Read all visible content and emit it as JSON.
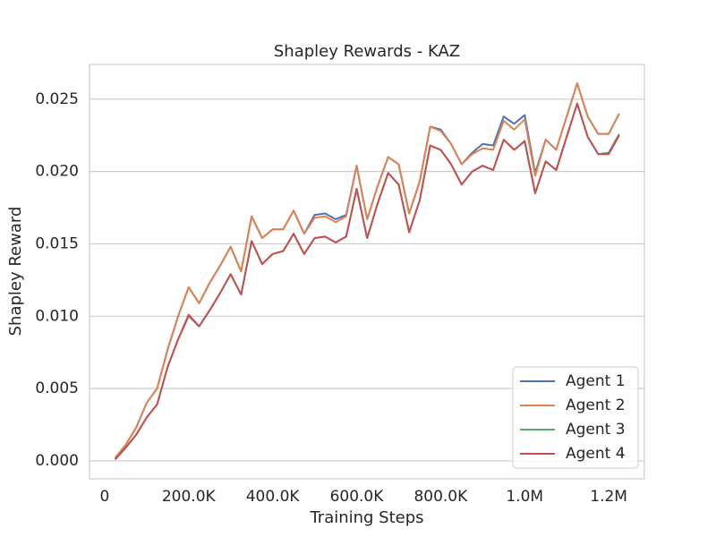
{
  "chart_data": {
    "type": "line",
    "title": "Shapley Rewards - KAZ",
    "xlabel": "Training Steps",
    "ylabel": "Shapley Reward",
    "x": [
      25000,
      50000,
      75000,
      100000,
      125000,
      150000,
      175000,
      200000,
      225000,
      250000,
      275000,
      300000,
      325000,
      350000,
      375000,
      400000,
      425000,
      450000,
      475000,
      500000,
      525000,
      550000,
      575000,
      600000,
      625000,
      650000,
      675000,
      700000,
      725000,
      750000,
      775000,
      800000,
      825000,
      850000,
      875000,
      900000,
      925000,
      950000,
      975000,
      1000000,
      1025000,
      1050000,
      1075000,
      1100000,
      1125000,
      1150000,
      1175000,
      1200000,
      1225000
    ],
    "series": [
      {
        "name": "Agent 1",
        "color": "#4c72b0",
        "values": [
          0.0002,
          0.0011,
          0.0023,
          0.004,
          0.005,
          0.0077,
          0.01,
          0.012,
          0.0109,
          0.0123,
          0.0135,
          0.0148,
          0.0131,
          0.0169,
          0.0154,
          0.016,
          0.016,
          0.0173,
          0.0157,
          0.017,
          0.0171,
          0.0167,
          0.017,
          0.0204,
          0.0167,
          0.019,
          0.021,
          0.0205,
          0.0171,
          0.0193,
          0.0231,
          0.0229,
          0.0219,
          0.0205,
          0.0213,
          0.0219,
          0.0218,
          0.0238,
          0.0233,
          0.0239,
          0.0199,
          0.0222,
          0.0215,
          0.0238,
          0.0261,
          0.0238,
          0.0226,
          0.0226,
          0.024
        ]
      },
      {
        "name": "Agent 2",
        "color": "#dd8452",
        "values": [
          0.0002,
          0.0011,
          0.0023,
          0.004,
          0.005,
          0.0077,
          0.01,
          0.012,
          0.0109,
          0.0123,
          0.0135,
          0.0148,
          0.0131,
          0.0169,
          0.0154,
          0.016,
          0.016,
          0.0173,
          0.0157,
          0.0168,
          0.0169,
          0.0165,
          0.0169,
          0.0204,
          0.0167,
          0.019,
          0.021,
          0.0205,
          0.0171,
          0.0193,
          0.0231,
          0.0228,
          0.0219,
          0.0205,
          0.0212,
          0.0216,
          0.0215,
          0.0235,
          0.0229,
          0.0236,
          0.0197,
          0.0222,
          0.0215,
          0.0238,
          0.0261,
          0.0238,
          0.0226,
          0.0226,
          0.024
        ]
      },
      {
        "name": "Agent 3",
        "color": "#55a868",
        "values": [
          0.0001,
          0.0009,
          0.0018,
          0.003,
          0.0039,
          0.0065,
          0.0084,
          0.01,
          0.0093,
          0.0104,
          0.0116,
          0.0129,
          0.0115,
          0.0152,
          0.0136,
          0.0143,
          0.0145,
          0.0157,
          0.0143,
          0.0154,
          0.0155,
          0.0151,
          0.0155,
          0.0188,
          0.0154,
          0.0178,
          0.0199,
          0.0191,
          0.0158,
          0.018,
          0.0218,
          0.0215,
          0.0205,
          0.0191,
          0.02,
          0.0204,
          0.0201,
          0.0222,
          0.0215,
          0.0221,
          0.0185,
          0.0207,
          0.0201,
          0.0224,
          0.0247,
          0.0224,
          0.0212,
          0.0213,
          0.0226
        ]
      },
      {
        "name": "Agent 4",
        "color": "#c44e52",
        "values": [
          0.0001,
          0.0009,
          0.0018,
          0.003,
          0.0039,
          0.0065,
          0.0084,
          0.0101,
          0.0093,
          0.0104,
          0.0116,
          0.0129,
          0.0115,
          0.0152,
          0.0136,
          0.0143,
          0.0145,
          0.0157,
          0.0143,
          0.0154,
          0.0155,
          0.0151,
          0.0155,
          0.0188,
          0.0154,
          0.0178,
          0.0199,
          0.0191,
          0.0158,
          0.018,
          0.0218,
          0.0215,
          0.0205,
          0.0191,
          0.02,
          0.0204,
          0.0201,
          0.0222,
          0.0215,
          0.0221,
          0.0185,
          0.0207,
          0.0201,
          0.0224,
          0.0247,
          0.0224,
          0.0212,
          0.0212,
          0.0225
        ]
      }
    ],
    "xlim": [
      -36000,
      1285000
    ],
    "xticks": [
      0,
      {
        "value": 200000,
        "label": "200.0K"
      },
      {
        "value": 400000,
        "label": "400.0K"
      },
      {
        "value": 600000,
        "label": "600.0K"
      },
      {
        "value": 800000,
        "label": "800.0K"
      },
      {
        "value": 1000000,
        "label": "1.0M"
      },
      {
        "value": 1200000,
        "label": "1.2M"
      }
    ],
    "ylim": [
      -0.00124,
      0.0274
    ],
    "yticks": [
      {
        "value": 0,
        "label": "0.000"
      },
      {
        "value": 0.005,
        "label": "0.005"
      },
      {
        "value": 0.01,
        "label": "0.010"
      },
      {
        "value": 0.015,
        "label": "0.015"
      },
      {
        "value": 0.02,
        "label": "0.020"
      },
      {
        "value": 0.025,
        "label": "0.025"
      }
    ],
    "grid": true,
    "legend": "lower right"
  }
}
